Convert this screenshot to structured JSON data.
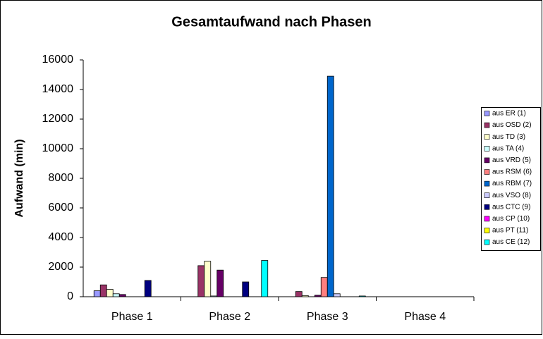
{
  "chart_data": {
    "type": "bar",
    "title": "Gesamtaufwand nach Phasen",
    "y_label": "Aufwand (min)",
    "categories": [
      "Phase 1",
      "Phase 2",
      "Phase 3",
      "Phase 4"
    ],
    "series": [
      {
        "name": "aus ER (1)",
        "color": "#9999ff",
        "values": [
          400,
          0,
          0,
          0
        ]
      },
      {
        "name": "aus OSD (2)",
        "color": "#993366",
        "values": [
          800,
          2100,
          350,
          0
        ]
      },
      {
        "name": "aus TD (3)",
        "color": "#ffffcc",
        "values": [
          500,
          2400,
          80,
          0
        ]
      },
      {
        "name": "aus TA (4)",
        "color": "#ccffff",
        "values": [
          200,
          50,
          0,
          0
        ]
      },
      {
        "name": "aus VRD (5)",
        "color": "#660066",
        "values": [
          150,
          1800,
          100,
          0
        ]
      },
      {
        "name": "aus RSM (6)",
        "color": "#ff8080",
        "values": [
          0,
          0,
          1300,
          0
        ]
      },
      {
        "name": "aus RBM (7)",
        "color": "#0066cc",
        "values": [
          0,
          0,
          14900,
          0
        ]
      },
      {
        "name": "aus VSO (8)",
        "color": "#ccccff",
        "values": [
          0,
          0,
          200,
          0
        ]
      },
      {
        "name": "aus CTC (9)",
        "color": "#000080",
        "values": [
          1100,
          1000,
          0,
          0
        ]
      },
      {
        "name": "aus CP (10)",
        "color": "#ff00ff",
        "values": [
          0,
          0,
          0,
          0
        ]
      },
      {
        "name": "aus PT (11)",
        "color": "#ffff00",
        "values": [
          0,
          0,
          0,
          0
        ]
      },
      {
        "name": "aus CE (12)",
        "color": "#00ffff",
        "values": [
          0,
          2450,
          50,
          0
        ]
      }
    ],
    "ylim": [
      0,
      16000
    ],
    "yticks": [
      0,
      2000,
      4000,
      6000,
      8000,
      10000,
      12000,
      14000,
      16000
    ],
    "grid": false,
    "legend": "right"
  }
}
